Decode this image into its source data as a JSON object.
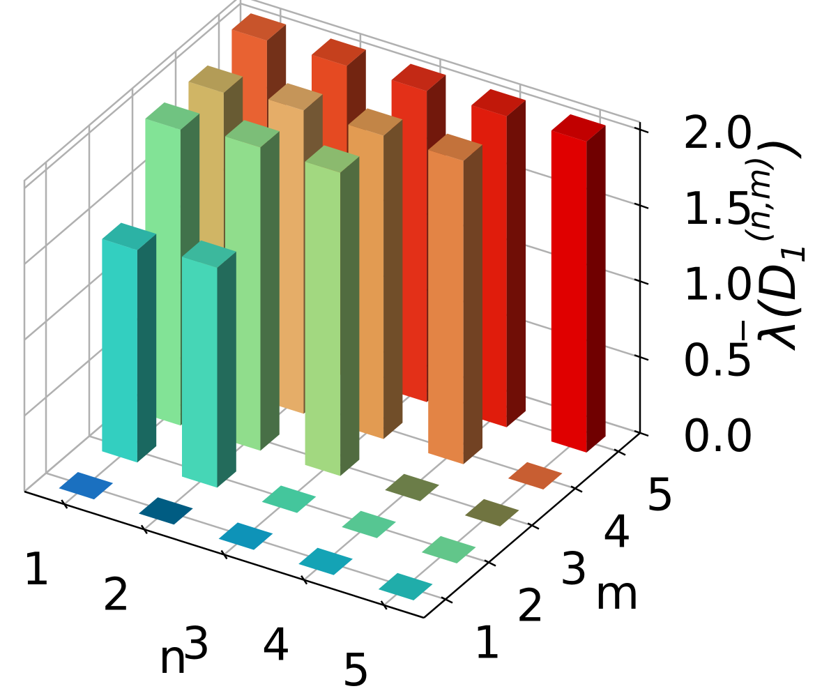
{
  "chart_data": {
    "type": "bar3d",
    "title": "",
    "xlabel": "n",
    "ylabel": "m",
    "zlabel": {
      "lambda_bar": "λ",
      "open": "(",
      "D": "D",
      "sub": "1",
      "sup": "(n,m)",
      "close": ")"
    },
    "n_ticks": [
      "1",
      "2",
      "3",
      "4",
      "5"
    ],
    "m_ticks": [
      "1",
      "2",
      "3",
      "4",
      "5"
    ],
    "z_ticks": [
      "0.0",
      "0.5",
      "1.0",
      "1.5",
      "2.0"
    ],
    "zlim": [
      0,
      2
    ],
    "grid": true,
    "bars": [
      {
        "n": 1,
        "m": 1,
        "value": 0.0,
        "color": "#1a70c0"
      },
      {
        "n": 1,
        "m": 2,
        "value": 1.4,
        "color": "#33cfc0"
      },
      {
        "n": 1,
        "m": 3,
        "value": 1.95,
        "color": "#82e396"
      },
      {
        "n": 1,
        "m": 4,
        "value": 1.95,
        "color": "#d0b565"
      },
      {
        "n": 1,
        "m": 5,
        "value": 2.05,
        "color": "#e86232"
      },
      {
        "n": 2,
        "m": 1,
        "value": 0.0,
        "color": "#005c82"
      },
      {
        "n": 2,
        "m": 2,
        "value": 1.45,
        "color": "#46d6b6"
      },
      {
        "n": 2,
        "m": 3,
        "value": 2.0,
        "color": "#90dd8c"
      },
      {
        "n": 2,
        "m": 4,
        "value": 2.0,
        "color": "#e5ad68"
      },
      {
        "n": 2,
        "m": 5,
        "value": 2.05,
        "color": "#e54a22"
      },
      {
        "n": 3,
        "m": 1,
        "value": 0.0,
        "color": "#0e93b8"
      },
      {
        "n": 3,
        "m": 2,
        "value": 0.0,
        "color": "#44c69c"
      },
      {
        "n": 3,
        "m": 3,
        "value": 2.0,
        "color": "#a2d880"
      },
      {
        "n": 3,
        "m": 4,
        "value": 2.0,
        "color": "#e29b52"
      },
      {
        "n": 3,
        "m": 5,
        "value": 2.05,
        "color": "#e33018"
      },
      {
        "n": 4,
        "m": 1,
        "value": 0.0,
        "color": "#14a3b5"
      },
      {
        "n": 4,
        "m": 2,
        "value": 0.0,
        "color": "#56c692"
      },
      {
        "n": 4,
        "m": 3,
        "value": 0.0,
        "color": "#6b7d48"
      },
      {
        "n": 4,
        "m": 4,
        "value": 2.0,
        "color": "#e38445"
      },
      {
        "n": 4,
        "m": 5,
        "value": 2.05,
        "color": "#e01c0c"
      },
      {
        "n": 5,
        "m": 1,
        "value": 0.0,
        "color": "#20adaa"
      },
      {
        "n": 5,
        "m": 2,
        "value": 0.0,
        "color": "#62c68a"
      },
      {
        "n": 5,
        "m": 3,
        "value": 0.0,
        "color": "#707440"
      },
      {
        "n": 5,
        "m": 4,
        "value": 0.0,
        "color": "#c85e32"
      },
      {
        "n": 5,
        "m": 5,
        "value": 2.05,
        "color": "#e00000"
      }
    ]
  }
}
